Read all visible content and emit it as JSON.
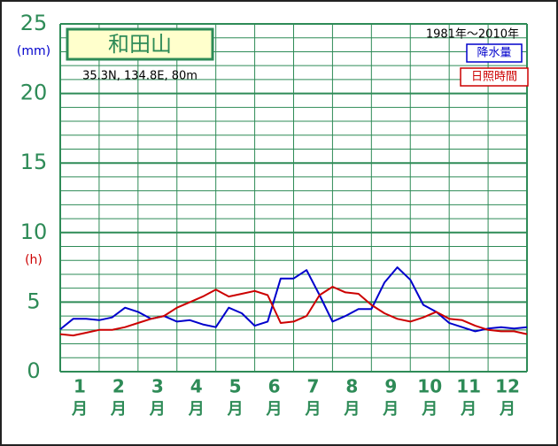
{
  "chart_data": {
    "type": "line",
    "title": "和田山",
    "subtitle": "35.3N,  134.8E,  80m",
    "period": "1981年〜2010年",
    "y_unit_left": "(mm)",
    "y_unit_right": "(h)",
    "categories": [
      "1",
      "2",
      "3",
      "4",
      "5",
      "6",
      "7",
      "8",
      "9",
      "10",
      "11",
      "12"
    ],
    "category_suffix": "月",
    "x": [
      0.5,
      0.833,
      1.167,
      1.5,
      1.833,
      2.167,
      2.5,
      2.833,
      3.167,
      3.5,
      3.833,
      4.167,
      4.5,
      4.833,
      5.167,
      5.5,
      5.833,
      6.167,
      6.5,
      6.833,
      7.167,
      7.5,
      7.833,
      8.167,
      8.5,
      8.833,
      9.167,
      9.5,
      9.833,
      10.167,
      10.5,
      10.833,
      11.167,
      11.5,
      11.833,
      12.167,
      12.5
    ],
    "xlim": [
      0.5,
      12.5
    ],
    "ylim": [
      0,
      25
    ],
    "yticks": [
      0,
      5,
      10,
      15,
      20,
      25
    ],
    "minor_yticks": [
      1,
      2,
      3,
      4,
      6,
      7,
      8,
      9,
      11,
      12,
      13,
      14,
      16,
      17,
      18,
      19,
      21,
      22,
      23,
      24
    ],
    "grid": true,
    "legend": "upper right",
    "series": [
      {
        "name": "降水量",
        "color": "#0000cc",
        "values": [
          3.05,
          3.8,
          3.8,
          3.7,
          3.9,
          4.6,
          4.3,
          3.8,
          4.0,
          3.6,
          3.7,
          3.4,
          3.2,
          4.6,
          4.2,
          3.3,
          3.6,
          6.7,
          6.7,
          7.3,
          5.5,
          3.6,
          4.0,
          4.5,
          4.5,
          6.4,
          7.5,
          6.6,
          4.8,
          4.3,
          3.5,
          3.2,
          2.9,
          3.1,
          3.2,
          3.1,
          3.2
        ]
      },
      {
        "name": "日照時間",
        "color": "#cc0000",
        "values": [
          2.7,
          2.6,
          2.8,
          3.0,
          3.0,
          3.2,
          3.5,
          3.8,
          4.0,
          4.6,
          5.0,
          5.4,
          5.9,
          5.4,
          5.6,
          5.8,
          5.5,
          3.5,
          3.6,
          4.0,
          5.5,
          6.1,
          5.7,
          5.6,
          4.8,
          4.2,
          3.8,
          3.6,
          3.9,
          4.3,
          3.8,
          3.7,
          3.3,
          3.0,
          2.9,
          2.9,
          2.7
        ]
      }
    ]
  }
}
